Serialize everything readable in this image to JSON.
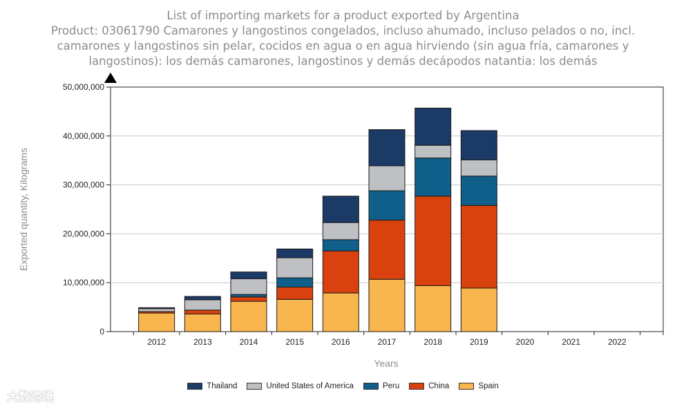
{
  "title": {
    "line1": "List of importing markets for a product exported by Argentina",
    "line2": "Product: 03061790 Camarones y langostinos congelados, incluso ahumado, incluso pelados o no, incl.",
    "line3": "camarones y langostinos sin pelar, cocidos en agua o en agua hirviendo (sin agua fría, camarones y",
    "line4": "langostinos): los demás camarones, langostinos y demás decápodos natantia: los demás"
  },
  "watermark": "大数跨境",
  "chart_data": {
    "type": "bar",
    "stacked": true,
    "xlabel": "Years",
    "ylabel": "Exported quantity, Kilograms",
    "ylim": [
      0,
      50000000
    ],
    "yticks": [
      0,
      10000000,
      20000000,
      30000000,
      40000000,
      50000000
    ],
    "ytick_labels": [
      "0",
      "10,000,000",
      "20,000,000",
      "30,000,000",
      "40,000,000",
      "50,000,000"
    ],
    "categories": [
      "2012",
      "2013",
      "2014",
      "2015",
      "2016",
      "2017",
      "2018",
      "2019",
      "2020",
      "2021",
      "2022"
    ],
    "series": [
      {
        "name": "Spain",
        "color": "#f9b54e",
        "values": [
          3800000,
          3600000,
          6200000,
          6600000,
          7900000,
          10700000,
          9400000,
          8900000,
          0,
          0,
          0
        ]
      },
      {
        "name": "China",
        "color": "#d9420e",
        "values": [
          300000,
          800000,
          900000,
          2500000,
          8600000,
          12100000,
          18300000,
          16900000,
          0,
          0,
          0
        ]
      },
      {
        "name": "Peru",
        "color": "#0f5f8a",
        "values": [
          0,
          0,
          500000,
          1900000,
          2300000,
          6000000,
          7800000,
          6000000,
          0,
          0,
          0
        ]
      },
      {
        "name": "United States of America",
        "color": "#bfc0c4",
        "values": [
          600000,
          2100000,
          3200000,
          4100000,
          3500000,
          5100000,
          2600000,
          3300000,
          0,
          0,
          0
        ]
      },
      {
        "name": "Thailand",
        "color": "#1b3a66",
        "values": [
          200000,
          700000,
          1400000,
          1800000,
          5400000,
          7400000,
          7600000,
          6000000,
          0,
          0,
          0
        ]
      }
    ],
    "legend": {
      "placement": "bottom-center",
      "order": [
        "Thailand",
        "United States of America",
        "Peru",
        "China",
        "Spain"
      ]
    },
    "grid": true
  }
}
